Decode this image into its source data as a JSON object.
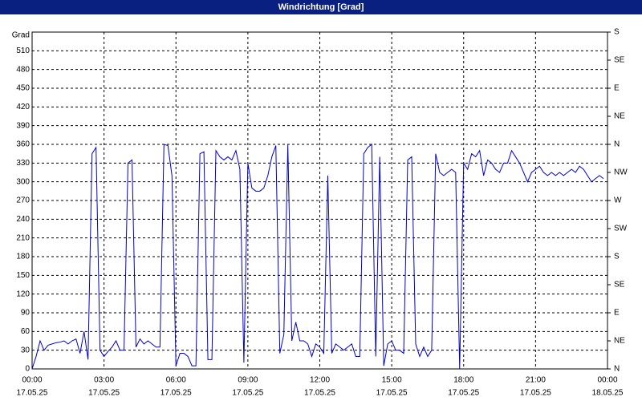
{
  "chart_data": {
    "type": "line",
    "title": "Windrichtung [Grad]",
    "ylabel": "Grad",
    "x": [
      0,
      10,
      20,
      30,
      40,
      50,
      60,
      70,
      80,
      90,
      100,
      110,
      120,
      130,
      140,
      150,
      160,
      170,
      180,
      190,
      200,
      210,
      220,
      230,
      240,
      250,
      260,
      270,
      280,
      290,
      300,
      310,
      320,
      330,
      340,
      350,
      360,
      370,
      380,
      390,
      400,
      410,
      420,
      430,
      440,
      450,
      460,
      470,
      480,
      490,
      500,
      510,
      520,
      530,
      540,
      550,
      560,
      570,
      580,
      590,
      600,
      610,
      620,
      630,
      640,
      650,
      660,
      670,
      680,
      690,
      700,
      710,
      720,
      730,
      740,
      750,
      760,
      770,
      780,
      790,
      800,
      810,
      820,
      830,
      840,
      850,
      860,
      870,
      880,
      890,
      900,
      910,
      920,
      930,
      940,
      950,
      960,
      970,
      980,
      990,
      1000,
      1010,
      1020,
      1030,
      1040,
      1050,
      1060,
      1070,
      1080,
      1090,
      1100,
      1110,
      1120,
      1130,
      1140,
      1150,
      1160,
      1170,
      1180,
      1190,
      1200,
      1210,
      1220,
      1230,
      1240,
      1250,
      1260,
      1270,
      1280,
      1290,
      1300,
      1310,
      1320,
      1330,
      1340,
      1350,
      1360,
      1370,
      1380,
      1390,
      1400,
      1410,
      1420,
      1430
    ],
    "values": [
      0,
      20,
      45,
      30,
      38,
      40,
      42,
      43,
      45,
      40,
      45,
      48,
      25,
      60,
      15,
      345,
      355,
      30,
      20,
      28,
      35,
      45,
      30,
      30,
      330,
      335,
      35,
      48,
      40,
      45,
      40,
      35,
      35,
      360,
      358,
      310,
      5,
      25,
      25,
      20,
      5,
      5,
      345,
      348,
      15,
      15,
      350,
      340,
      335,
      340,
      335,
      350,
      320,
      10,
      330,
      290,
      285,
      285,
      290,
      310,
      340,
      358,
      25,
      55,
      360,
      45,
      75,
      45,
      45,
      40,
      20,
      40,
      35,
      25,
      310,
      25,
      40,
      35,
      30,
      35,
      40,
      20,
      20,
      345,
      355,
      360,
      20,
      340,
      5,
      40,
      45,
      30,
      30,
      25,
      335,
      340,
      40,
      20,
      35,
      20,
      30,
      345,
      315,
      310,
      315,
      320,
      315,
      0,
      330,
      320,
      345,
      340,
      350,
      310,
      335,
      330,
      320,
      315,
      330,
      330,
      350,
      340,
      330,
      315,
      300,
      315,
      320,
      325,
      315,
      310,
      315,
      310,
      315,
      310,
      315,
      320,
      315,
      325,
      320,
      310,
      300,
      305,
      310,
      305
    ],
    "color": "#0000cc",
    "xlim": [
      0,
      1440
    ],
    "xticks": [
      {
        "value": 0,
        "label": "00:00",
        "date": "17.05.25"
      },
      {
        "value": 180,
        "label": "03:00",
        "date": "17.05.25"
      },
      {
        "value": 360,
        "label": "06:00",
        "date": "17.05.25"
      },
      {
        "value": 540,
        "label": "09:00",
        "date": "17.05.25"
      },
      {
        "value": 720,
        "label": "12:00",
        "date": "17.05.25"
      },
      {
        "value": 900,
        "label": "15:00",
        "date": "17.05.25"
      },
      {
        "value": 1080,
        "label": "18:00",
        "date": "17.05.25"
      },
      {
        "value": 1260,
        "label": "21:00",
        "date": "17.05.25"
      },
      {
        "value": 1440,
        "label": "00:00",
        "date": "18.05.25"
      }
    ],
    "ylim": [
      0,
      540
    ],
    "yticks": [
      0,
      30,
      60,
      90,
      120,
      150,
      180,
      210,
      240,
      270,
      300,
      330,
      360,
      390,
      420,
      450,
      480,
      510
    ],
    "y2lim": [
      0,
      540
    ],
    "y2ticks": [
      {
        "value": 0,
        "label": "N"
      },
      {
        "value": 45,
        "label": "NE"
      },
      {
        "value": 90,
        "label": "E"
      },
      {
        "value": 135,
        "label": "SE"
      },
      {
        "value": 180,
        "label": "S"
      },
      {
        "value": 225,
        "label": "SW"
      },
      {
        "value": 270,
        "label": "W"
      },
      {
        "value": 315,
        "label": "NW"
      },
      {
        "value": 360,
        "label": "N"
      },
      {
        "value": 405,
        "label": "NE"
      },
      {
        "value": 450,
        "label": "E"
      },
      {
        "value": 495,
        "label": "SE"
      },
      {
        "value": 540,
        "label": "S"
      }
    ],
    "grid": true
  }
}
